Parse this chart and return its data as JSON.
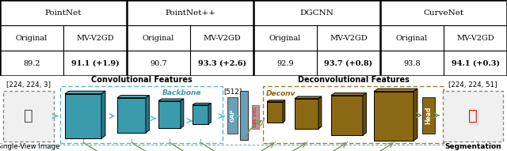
{
  "table": {
    "group_headers": [
      "PointNet",
      "PointNet++",
      "DGCNN",
      "CurveNet"
    ],
    "sub_headers": [
      "Original",
      "MV-V2GD",
      "Original",
      "MV-V2GD",
      "Original",
      "MV-V2GD",
      "Original",
      "MV-V2GD"
    ],
    "values": [
      "89.2",
      "91.1 (+1.9)",
      "90.7",
      "93.3 (+2.6)",
      "92.9",
      "93.7 (+0.8)",
      "93.8",
      "94.1 (+0.3)"
    ],
    "bold_idx": [
      1,
      3,
      5,
      7
    ]
  },
  "diagram": {
    "teal": "#3A9BAD",
    "teal_dark": "#2A7A8A",
    "teal_top": "#4AACBE",
    "dark_yellow": "#8B6914",
    "dark_yellow_dark": "#6B4E0A",
    "dark_yellow_top": "#9B7924",
    "gap_color": "#6BA0B8",
    "gap_dark": "#4A80A0",
    "cat_color": "#C09090",
    "cat_text": "#cc4444",
    "head_color": "#8B6914",
    "teal_arrow": "#5BB8C8",
    "green_arrow": "#7A9A50",
    "dashed_teal": "#5BB8C8",
    "dashed_yellow": "#9B8030",
    "label_top_left": "[224, 224, 3]",
    "label_top_right": "[224, 224, 51]",
    "label_bot_left": "Single-View Image",
    "label_bot_right": "Segmentation",
    "label_conv": "Convolutional Features",
    "label_deconv": "Deconvolutional Features",
    "label_backbone": "Backbone",
    "label_deconv_inner": "Deconv",
    "label_gap": "GAP",
    "label_cat": "cat vec",
    "label_head": "Head",
    "label_512": "[512]"
  }
}
